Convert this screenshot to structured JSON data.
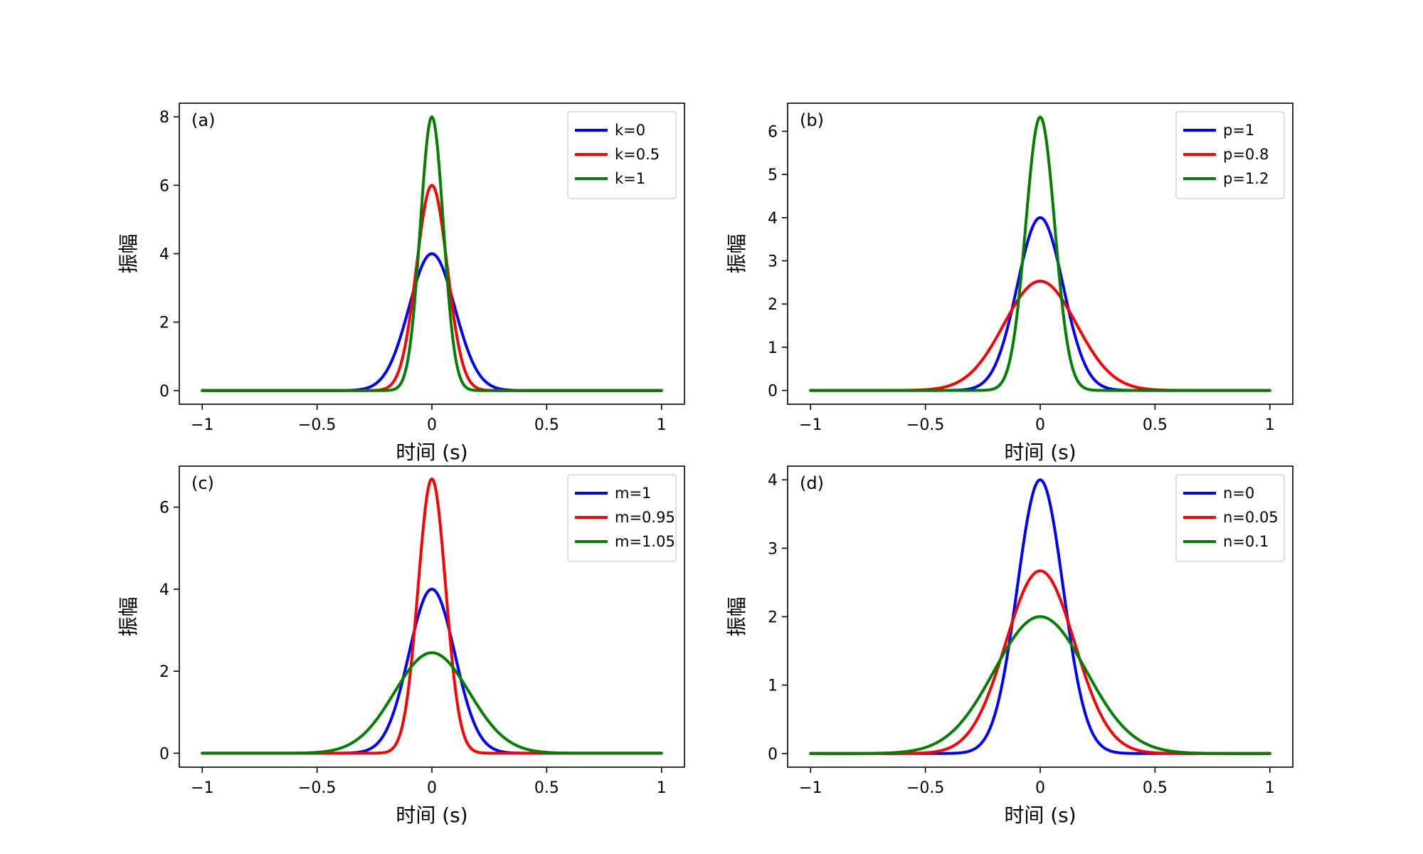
{
  "chart_data": [
    {
      "type": "line",
      "panel_label": "(a)",
      "xlabel": "时间 (s)",
      "ylabel": "振幅",
      "xlim": [
        -1.1,
        1.1
      ],
      "ylim": [
        -0.4,
        8.4
      ],
      "xticks": [
        -1,
        -0.5,
        0,
        0.5,
        1
      ],
      "xtick_labels": [
        "−1",
        "−0.5",
        "0",
        "0.5",
        "1"
      ],
      "yticks": [
        0,
        2,
        4,
        6,
        8
      ],
      "ytick_labels": [
        "0",
        "2",
        "4",
        "6",
        "8"
      ],
      "legend_position": "top-right",
      "series": [
        {
          "name": "k=0",
          "color": "#0000ff",
          "peak": 4.0,
          "sigma": 0.1
        },
        {
          "name": "k=0.5",
          "color": "#ff0000",
          "peak": 6.0,
          "sigma": 0.0667
        },
        {
          "name": "k=1",
          "color": "#008000",
          "peak": 8.0,
          "sigma": 0.05
        }
      ]
    },
    {
      "type": "line",
      "panel_label": "(b)",
      "xlabel": "时间 (s)",
      "ylabel": "振幅",
      "xlim": [
        -1.1,
        1.1
      ],
      "ylim": [
        -0.32,
        6.65
      ],
      "xticks": [
        -1,
        -0.5,
        0,
        0.5,
        1
      ],
      "xtick_labels": [
        "−1",
        "−0.5",
        "0",
        "0.5",
        "1"
      ],
      "yticks": [
        0,
        1,
        2,
        3,
        4,
        5,
        6
      ],
      "ytick_labels": [
        "0",
        "1",
        "2",
        "3",
        "4",
        "5",
        "6"
      ],
      "legend_position": "top-right",
      "series": [
        {
          "name": "p=1",
          "color": "#0000ff",
          "peak": 4.0,
          "sigma": 0.1
        },
        {
          "name": "p=0.8",
          "color": "#ff0000",
          "peak": 2.53,
          "sigma": 0.158
        },
        {
          "name": "p=1.2",
          "color": "#008000",
          "peak": 6.33,
          "sigma": 0.063
        }
      ]
    },
    {
      "type": "line",
      "panel_label": "(c)",
      "xlabel": "时间 (s)",
      "ylabel": "振幅",
      "xlim": [
        -1.1,
        1.1
      ],
      "ylim": [
        -0.34,
        7.0
      ],
      "xticks": [
        -1,
        -0.5,
        0,
        0.5,
        1
      ],
      "xtick_labels": [
        "−1",
        "−0.5",
        "0",
        "0.5",
        "1"
      ],
      "yticks": [
        0,
        2,
        4,
        6
      ],
      "ytick_labels": [
        "0",
        "2",
        "4",
        "6"
      ],
      "legend_position": "top-right",
      "series": [
        {
          "name": "m=1",
          "color": "#0000ff",
          "peak": 4.0,
          "sigma": 0.1
        },
        {
          "name": "m=0.95",
          "color": "#ff0000",
          "peak": 6.69,
          "sigma": 0.06
        },
        {
          "name": "m=1.05",
          "color": "#008000",
          "peak": 2.45,
          "sigma": 0.163
        }
      ]
    },
    {
      "type": "line",
      "panel_label": "(d)",
      "xlabel": "时间 (s)",
      "ylabel": "振幅",
      "xlim": [
        -1.1,
        1.1
      ],
      "ylim": [
        -0.2,
        4.2
      ],
      "xticks": [
        -1,
        -0.5,
        0,
        0.5,
        1
      ],
      "xtick_labels": [
        "−1",
        "−0.5",
        "0",
        "0.5",
        "1"
      ],
      "yticks": [
        0,
        1,
        2,
        3,
        4
      ],
      "ytick_labels": [
        "0",
        "1",
        "2",
        "3",
        "4"
      ],
      "legend_position": "top-right",
      "series": [
        {
          "name": "n=0",
          "color": "#0000ff",
          "peak": 4.0,
          "sigma": 0.1
        },
        {
          "name": "n=0.05",
          "color": "#ff0000",
          "peak": 2.67,
          "sigma": 0.15
        },
        {
          "name": "n=0.1",
          "color": "#008000",
          "peak": 2.0,
          "sigma": 0.2
        }
      ]
    }
  ]
}
